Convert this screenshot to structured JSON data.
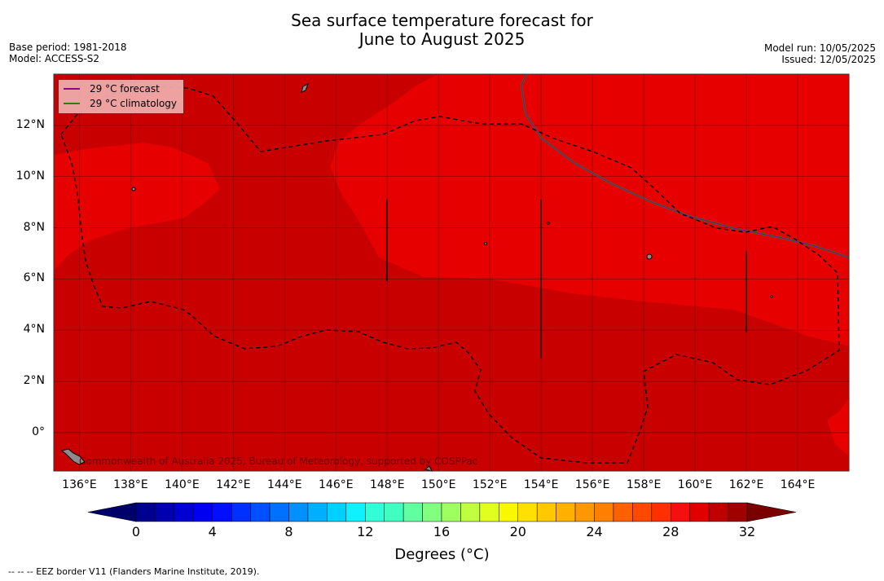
{
  "title": {
    "line1": "Sea surface temperature forecast for",
    "line2": "June to August 2025"
  },
  "meta_left": {
    "base_period": "Base period: 1981-2018",
    "model": "Model: ACCESS-S2"
  },
  "meta_right": {
    "model_run": "Model run: 10/05/2025",
    "issued": "Issued: 12/05/2025"
  },
  "legend": {
    "forecast_label": "29 °C  forecast",
    "forecast_color": "#8b0a8b",
    "climatology_label": "29 °C  climatology",
    "climatology_color": "#2e7d0f"
  },
  "map_extent": {
    "lon": [
      135,
      166
    ],
    "lat": [
      -1.5,
      14
    ]
  },
  "lat_labels": [
    "12°N",
    "10°N",
    "8°N",
    "6°N",
    "4°N",
    "2°N",
    "0°"
  ],
  "lon_labels": [
    "136°E",
    "138°E",
    "140°E",
    "142°E",
    "144°E",
    "146°E",
    "148°E",
    "150°E",
    "152°E",
    "154°E",
    "156°E",
    "158°E",
    "160°E",
    "162°E",
    "164°E"
  ],
  "colors": {
    "band_28_29": "#e60000",
    "band_29_30": "#c80000",
    "eez_border": "#000000"
  },
  "colorbar": {
    "ticks": [
      "0",
      "4",
      "8",
      "12",
      "16",
      "20",
      "24",
      "28",
      "32"
    ],
    "title": "Degrees (°C)",
    "min": 0,
    "max": 32,
    "step": 1,
    "colors": [
      "#00008f",
      "#0000b0",
      "#0000d0",
      "#0000f0",
      "#0010ff",
      "#0030ff",
      "#0050ff",
      "#0070ff",
      "#0090ff",
      "#00b0ff",
      "#00d0ff",
      "#10f0ff",
      "#30ffd8",
      "#40ffc0",
      "#60ffa0",
      "#80ff80",
      "#a0ff60",
      "#c0ff40",
      "#e0ff20",
      "#f8f800",
      "#ffe000",
      "#ffc800",
      "#ffb000",
      "#ff9800",
      "#ff8000",
      "#ff6000",
      "#ff4800",
      "#ff3000",
      "#f51010",
      "#e00000",
      "#c00000",
      "#a00000"
    ],
    "extend_low_color": "#00006a",
    "extend_high_color": "#7a0000"
  },
  "copyright": "Commonwealth of Australia 2025, Bureau of Meteorology, supported by COSPPac",
  "footnote": "--  --  -- EEZ border V11 (Flanders Marine Institute, 2019)."
}
